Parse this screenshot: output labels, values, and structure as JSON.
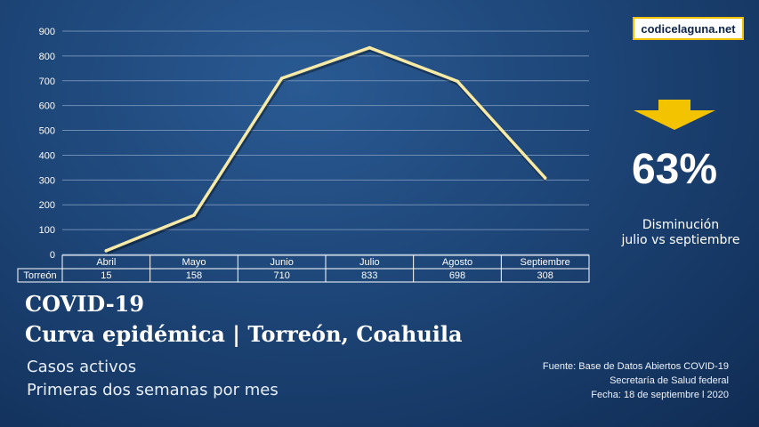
{
  "brand": "codicelaguna.net",
  "kpi": {
    "value": "63%",
    "label_line1": "Disminución",
    "label_line2": "julio vs septiembre"
  },
  "title": {
    "line1": "COVID-19",
    "line2": "Curva epidémica | Torreón, Coahuila"
  },
  "subtitle": {
    "line1": "Casos activos",
    "line2": "Primeras dos semanas por mes"
  },
  "source": {
    "line1": "Fuente: Base de Datos Abiertos COVID-19",
    "line2": "Secretaría de Salud federal",
    "line3": "Fecha: 18 de septiembre l 2020"
  },
  "colors": {
    "line": "#f7e9a6",
    "arrow": "#f3c300",
    "grid": "#6f8db3",
    "background": "#1d4577"
  },
  "icons": {
    "down_arrow": "down-arrow-icon"
  },
  "chart_data": {
    "type": "line",
    "categories": [
      "Abril",
      "Mayo",
      "Junio",
      "Julio",
      "Agosto",
      "Septiembre"
    ],
    "series": [
      {
        "name": "Torreón",
        "values": [
          15,
          158,
          710,
          833,
          698,
          308
        ]
      }
    ],
    "ylim": [
      0,
      900
    ],
    "yticks": [
      0,
      100,
      200,
      300,
      400,
      500,
      600,
      700,
      800,
      900
    ],
    "grid": true,
    "data_table": true
  }
}
